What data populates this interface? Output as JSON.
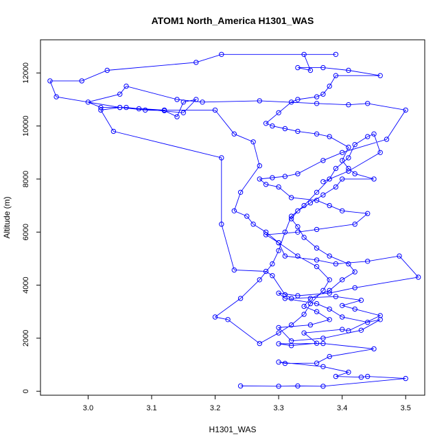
{
  "chart_data": {
    "type": "line",
    "title": "ATOM1 North_America H1301_WAS",
    "xlabel": "H1301_WAS",
    "ylabel": "Altitude (m)",
    "xlim": [
      2.925,
      3.53
    ],
    "ylim": [
      -150,
      13250
    ],
    "x_ticks": [
      3.0,
      3.1,
      3.2,
      3.3,
      3.4,
      3.5
    ],
    "x_tick_labels": [
      "3.0",
      "3.1",
      "3.2",
      "3.3",
      "3.4",
      "3.5"
    ],
    "y_ticks": [
      0,
      2000,
      4000,
      6000,
      8000,
      10000,
      12000
    ],
    "y_tick_labels": [
      "0",
      "2000",
      "4000",
      "6000",
      "8000",
      "10000",
      "12000"
    ],
    "grid": false,
    "colors": {
      "series": "#0000ff",
      "axis": "#000000",
      "background": "#ffffff"
    },
    "series": [
      {
        "marker": "open-circle",
        "points": [
          [
            3.24,
            200
          ],
          [
            3.3,
            190
          ],
          [
            3.33,
            200
          ],
          [
            3.37,
            190
          ],
          [
            3.5,
            480
          ],
          [
            3.44,
            560
          ],
          [
            3.43,
            530
          ],
          [
            3.39,
            560
          ],
          [
            3.41,
            720
          ],
          [
            3.37,
            930
          ],
          [
            3.3,
            1100
          ],
          [
            3.31,
            1050
          ],
          [
            3.36,
            1060
          ],
          [
            3.38,
            1310
          ],
          [
            3.45,
            1600
          ],
          [
            3.37,
            1800
          ],
          [
            3.3,
            1790
          ],
          [
            3.32,
            1720
          ],
          [
            3.36,
            1810
          ],
          [
            3.34,
            2200
          ],
          [
            3.4,
            2330
          ],
          [
            3.41,
            2280
          ],
          [
            3.46,
            2850
          ],
          [
            3.42,
            3100
          ],
          [
            3.4,
            3230
          ],
          [
            3.43,
            3430
          ],
          [
            3.39,
            3570
          ],
          [
            3.32,
            3500
          ],
          [
            3.31,
            3640
          ],
          [
            3.29,
            4360
          ],
          [
            3.28,
            4520
          ],
          [
            3.23,
            4570
          ],
          [
            3.21,
            6300
          ],
          [
            3.21,
            8800
          ],
          [
            3.04,
            9800
          ],
          [
            3.02,
            10600
          ],
          [
            3.05,
            10700
          ],
          [
            3.09,
            10600
          ],
          [
            3.12,
            10580
          ],
          [
            3.14,
            10350
          ],
          [
            3.15,
            10900
          ],
          [
            3.17,
            11000
          ],
          [
            3.15,
            10500
          ],
          [
            3.08,
            10650
          ],
          [
            3.06,
            10700
          ],
          [
            3.02,
            10700
          ],
          [
            3.0,
            10900
          ],
          [
            3.05,
            11200
          ],
          [
            3.06,
            11500
          ],
          [
            3.14,
            11000
          ],
          [
            3.18,
            10900
          ],
          [
            3.27,
            10950
          ],
          [
            3.36,
            10850
          ],
          [
            3.41,
            10800
          ],
          [
            3.44,
            10850
          ],
          [
            3.5,
            10600
          ],
          [
            3.47,
            9500
          ],
          [
            3.4,
            9000
          ],
          [
            3.37,
            8700
          ],
          [
            3.33,
            8200
          ],
          [
            3.31,
            8100
          ],
          [
            3.29,
            8050
          ],
          [
            3.27,
            8000
          ],
          [
            3.28,
            7800
          ],
          [
            3.3,
            7700
          ],
          [
            3.32,
            7300
          ],
          [
            3.36,
            7200
          ],
          [
            3.38,
            7000
          ],
          [
            3.4,
            6800
          ],
          [
            3.44,
            6700
          ],
          [
            3.42,
            6300
          ],
          [
            3.36,
            6100
          ],
          [
            3.33,
            6000
          ],
          [
            3.28,
            5900
          ],
          [
            3.3,
            5600
          ],
          [
            3.31,
            5100
          ],
          [
            3.36,
            4950
          ],
          [
            3.39,
            4800
          ],
          [
            3.44,
            4900
          ],
          [
            3.49,
            5100
          ],
          [
            3.52,
            4300
          ],
          [
            3.42,
            3900
          ],
          [
            3.38,
            3700
          ],
          [
            3.33,
            3600
          ],
          [
            3.3,
            3700
          ],
          [
            3.31,
            3500
          ],
          [
            3.36,
            3300
          ],
          [
            3.38,
            3100
          ],
          [
            3.4,
            2800
          ],
          [
            3.44,
            2600
          ],
          [
            3.46,
            2700
          ],
          [
            3.43,
            2300
          ],
          [
            3.37,
            2000
          ],
          [
            3.32,
            1900
          ],
          [
            3.3,
            2400
          ],
          [
            3.35,
            2500
          ],
          [
            3.38,
            2700
          ],
          [
            3.36,
            3000
          ],
          [
            3.34,
            3200
          ],
          [
            3.35,
            3500
          ],
          [
            3.38,
            3800
          ],
          [
            3.4,
            4200
          ],
          [
            3.42,
            4500
          ],
          [
            3.41,
            4800
          ],
          [
            3.38,
            5100
          ],
          [
            3.36,
            5400
          ],
          [
            3.34,
            5800
          ],
          [
            3.33,
            6200
          ],
          [
            3.32,
            6500
          ],
          [
            3.33,
            6800
          ],
          [
            3.35,
            7100
          ],
          [
            3.37,
            7400
          ],
          [
            3.39,
            7700
          ],
          [
            3.4,
            8000
          ],
          [
            3.45,
            8000
          ],
          [
            3.42,
            8200
          ],
          [
            3.41,
            8400
          ],
          [
            3.4,
            8700
          ],
          [
            3.41,
            9200
          ],
          [
            3.38,
            9600
          ],
          [
            3.36,
            9700
          ],
          [
            3.33,
            9800
          ],
          [
            3.31,
            9900
          ],
          [
            3.29,
            10000
          ],
          [
            3.28,
            10100
          ],
          [
            3.3,
            10500
          ],
          [
            3.32,
            10900
          ],
          [
            3.33,
            11000
          ],
          [
            3.36,
            11100
          ],
          [
            3.37,
            11200
          ],
          [
            3.38,
            11500
          ],
          [
            3.39,
            11900
          ],
          [
            3.46,
            11900
          ],
          [
            3.41,
            12100
          ],
          [
            3.37,
            12200
          ],
          [
            3.33,
            12200
          ],
          [
            3.35,
            12100
          ],
          [
            3.34,
            12700
          ],
          [
            3.39,
            12700
          ],
          [
            3.21,
            12700
          ],
          [
            3.17,
            12400
          ],
          [
            3.03,
            12100
          ],
          [
            2.99,
            11700
          ],
          [
            2.94,
            11700
          ],
          [
            2.95,
            11100
          ],
          [
            3.05,
            10700
          ],
          [
            3.12,
            10600
          ],
          [
            3.2,
            10600
          ],
          [
            3.23,
            9700
          ],
          [
            3.26,
            9400
          ],
          [
            3.27,
            8500
          ],
          [
            3.24,
            7500
          ],
          [
            3.23,
            6800
          ],
          [
            3.25,
            6600
          ],
          [
            3.26,
            6300
          ],
          [
            3.28,
            6000
          ],
          [
            3.3,
            5600
          ],
          [
            3.33,
            5100
          ],
          [
            3.36,
            4700
          ],
          [
            3.38,
            4200
          ],
          [
            3.37,
            3800
          ],
          [
            3.35,
            3300
          ],
          [
            3.34,
            2900
          ],
          [
            3.32,
            2500
          ],
          [
            3.3,
            2200
          ],
          [
            3.27,
            1800
          ],
          [
            3.22,
            2700
          ],
          [
            3.2,
            2800
          ],
          [
            3.24,
            3500
          ],
          [
            3.27,
            4200
          ],
          [
            3.29,
            4800
          ],
          [
            3.3,
            5300
          ],
          [
            3.31,
            6000
          ],
          [
            3.32,
            6600
          ],
          [
            3.34,
            7000
          ],
          [
            3.36,
            7500
          ],
          [
            3.38,
            8000
          ],
          [
            3.39,
            8400
          ],
          [
            3.41,
            8800
          ],
          [
            3.42,
            9300
          ],
          [
            3.44,
            9600
          ],
          [
            3.45,
            9700
          ],
          [
            3.46,
            9000
          ],
          [
            3.41,
            8300
          ],
          [
            3.37,
            7900
          ]
        ]
      }
    ]
  }
}
